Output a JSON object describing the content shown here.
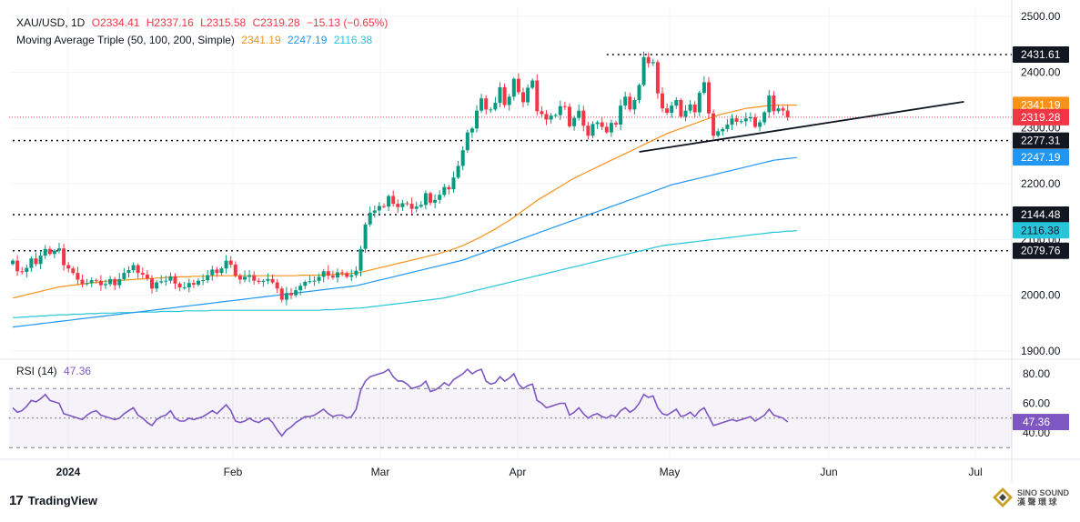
{
  "header": {
    "symbol": "XAU/USD, 1D",
    "open": "O2334.41",
    "high": "H2337.16",
    "low": "L2315.58",
    "close": "C2319.28",
    "change": "−15.13 (−0.65%)",
    "ma_label": "Moving Average Triple (50, 100, 200, Simple)",
    "ma50_value": "2341.19",
    "ma100_value": "2247.19",
    "ma200_value": "2116.38"
  },
  "rsi_header": {
    "label": "RSI (14)",
    "value": "47.36"
  },
  "branding": {
    "tradingview": "TradingView",
    "sino_line1": "SINO SOUND",
    "sino_line2": "漢 聲 環 球"
  },
  "colors": {
    "up": "#089981",
    "down": "#f23645",
    "ma50": "#f7931a",
    "ma100": "#2196f3",
    "ma200": "#26c6da",
    "rsi": "#7e57c2",
    "trendline": "#131722",
    "level": "#131722"
  },
  "chart_data": {
    "type": "candlestick",
    "title": "XAU/USD, 1D",
    "price_axis": {
      "ylim": [
        1900,
        2500
      ],
      "ticks": [
        "2500.00",
        "2400.00",
        "2300.00",
        "2200.00",
        "2100.00",
        "2000.00",
        "1900.00"
      ]
    },
    "time_axis": {
      "labels": [
        "2024",
        "Feb",
        "Mar",
        "Apr",
        "May",
        "Jun",
        "Jul"
      ]
    },
    "price_tags": [
      {
        "value": 2431.61,
        "label": "2431.61",
        "style": "level"
      },
      {
        "value": 2341.19,
        "label": "2341.19",
        "style": "ma50"
      },
      {
        "value": 2319.28,
        "label": "2319.28",
        "style": "last"
      },
      {
        "value": 2277.31,
        "label": "2277.31",
        "style": "level"
      },
      {
        "value": 2247.19,
        "label": "2247.19",
        "style": "ma100"
      },
      {
        "value": 2144.48,
        "label": "2144.48",
        "style": "level"
      },
      {
        "value": 2116.38,
        "label": "2116.38",
        "style": "ma200"
      },
      {
        "value": 2079.76,
        "label": "2079.76",
        "style": "level"
      }
    ],
    "horizontal_levels": [
      {
        "value": 2431.61,
        "from_index": 128
      },
      {
        "value": 2277.31,
        "from_index": 0
      },
      {
        "value": 2144.48,
        "from_index": 0
      },
      {
        "value": 2079.76,
        "from_index": 0
      }
    ],
    "last_price_line": 2319.28,
    "trendline": {
      "start": {
        "index": 135,
        "value": 2257
      },
      "end": {
        "index": 205,
        "value": 2347
      }
    },
    "closes": [
      2062,
      2043,
      2042,
      2049,
      2066,
      2056,
      2071,
      2083,
      2074,
      2080,
      2084,
      2054,
      2048,
      2040,
      2028,
      2020,
      2022,
      2027,
      2026,
      2018,
      2020,
      2029,
      2018,
      2029,
      2040,
      2045,
      2054,
      2040,
      2037,
      2030,
      2012,
      2023,
      2025,
      2026,
      2034,
      2021,
      2014,
      2014,
      2022,
      2019,
      2026,
      2027,
      2036,
      2046,
      2040,
      2048,
      2062,
      2055,
      2035,
      2028,
      2033,
      2036,
      2026,
      2024,
      2026,
      2029,
      2023,
      2012,
      1992,
      2004,
      2000,
      2009,
      2017,
      2024,
      2025,
      2026,
      2033,
      2043,
      2035,
      2032,
      2041,
      2040,
      2033,
      2036,
      2044,
      2083,
      2127,
      2148,
      2152,
      2160,
      2159,
      2178,
      2164,
      2158,
      2165,
      2164,
      2155,
      2159,
      2162,
      2183,
      2166,
      2171,
      2180,
      2194,
      2190,
      2211,
      2232,
      2260,
      2292,
      2299,
      2331,
      2353,
      2333,
      2333,
      2345,
      2373,
      2341,
      2356,
      2388,
      2364,
      2346,
      2372,
      2385,
      2330,
      2325,
      2315,
      2322,
      2323,
      2339,
      2338,
      2303,
      2318,
      2331,
      2304,
      2286,
      2307,
      2310,
      2302,
      2292,
      2309,
      2306,
      2340,
      2356,
      2333,
      2350,
      2377,
      2427,
      2416,
      2418,
      2362,
      2335,
      2327,
      2340,
      2350,
      2320,
      2331,
      2342,
      2328,
      2363,
      2382,
      2326,
      2286,
      2294,
      2298,
      2306,
      2317,
      2311,
      2312,
      2317,
      2319,
      2302,
      2310,
      2328,
      2358,
      2330,
      2335,
      2331,
      2319
    ],
    "ma50": [
      1995,
      1997,
      1999,
      2001,
      2003,
      2005,
      2007,
      2009,
      2011,
      2013,
      2015,
      2016,
      2017,
      2018,
      2019,
      2020,
      2021,
      2022,
      2023,
      2024,
      2025,
      2026,
      2026,
      2027,
      2027,
      2028,
      2028,
      2029,
      2029,
      2030,
      2030,
      2031,
      2031,
      2032,
      2032,
      2032,
      2033,
      2033,
      2033,
      2034,
      2034,
      2034,
      2034,
      2035,
      2035,
      2035,
      2035,
      2035,
      2035,
      2035,
      2035,
      2035,
      2035,
      2035,
      2035,
      2035,
      2035,
      2035,
      2035,
      2035,
      2035,
      2035,
      2036,
      2036,
      2036,
      2036,
      2036,
      2037,
      2037,
      2037,
      2038,
      2038,
      2038,
      2039,
      2040,
      2041,
      2043,
      2045,
      2047,
      2049,
      2051,
      2053,
      2055,
      2057,
      2059,
      2061,
      2063,
      2065,
      2067,
      2069,
      2071,
      2073,
      2075,
      2078,
      2080,
      2083,
      2086,
      2089,
      2093,
      2097,
      2101,
      2105,
      2110,
      2114,
      2119,
      2124,
      2129,
      2134,
      2140,
      2146,
      2152,
      2158,
      2164,
      2170,
      2175,
      2180,
      2185,
      2190,
      2195,
      2200,
      2205,
      2210,
      2214,
      2218,
      2222,
      2226,
      2230,
      2234,
      2238,
      2242,
      2246,
      2250,
      2254,
      2258,
      2262,
      2266,
      2270,
      2274,
      2278,
      2282,
      2286,
      2290,
      2293,
      2296,
      2299,
      2302,
      2305,
      2308,
      2311,
      2314,
      2317,
      2320,
      2323,
      2325,
      2327,
      2329,
      2331,
      2333,
      2335,
      2336,
      2337,
      2338,
      2339,
      2340,
      2340,
      2341,
      2341,
      2341,
      2341,
      2341
    ],
    "ma100": [
      1943,
      1944,
      1945,
      1946,
      1947,
      1948,
      1949,
      1950,
      1951,
      1952,
      1953,
      1954,
      1955,
      1956,
      1957,
      1958,
      1959,
      1960,
      1961,
      1962,
      1963,
      1964,
      1965,
      1966,
      1967,
      1968,
      1969,
      1970,
      1971,
      1972,
      1973,
      1974,
      1975,
      1976,
      1977,
      1978,
      1979,
      1980,
      1981,
      1982,
      1983,
      1984,
      1985,
      1986,
      1987,
      1988,
      1989,
      1990,
      1991,
      1992,
      1993,
      1994,
      1995,
      1996,
      1997,
      1998,
      1999,
      2000,
      2001,
      2002,
      2003,
      2004,
      2005,
      2006,
      2007,
      2008,
      2009,
      2010,
      2011,
      2012,
      2013,
      2014,
      2015,
      2016,
      2017,
      2019,
      2021,
      2023,
      2025,
      2027,
      2029,
      2031,
      2033,
      2035,
      2037,
      2039,
      2041,
      2043,
      2045,
      2047,
      2049,
      2051,
      2053,
      2055,
      2057,
      2059,
      2061,
      2063,
      2066,
      2069,
      2072,
      2075,
      2078,
      2081,
      2084,
      2087,
      2090,
      2093,
      2096,
      2099,
      2102,
      2105,
      2108,
      2111,
      2114,
      2117,
      2120,
      2123,
      2126,
      2129,
      2132,
      2135,
      2138,
      2141,
      2144,
      2147,
      2150,
      2153,
      2156,
      2159,
      2162,
      2165,
      2168,
      2171,
      2174,
      2177,
      2180,
      2183,
      2186,
      2189,
      2192,
      2195,
      2198,
      2200,
      2202,
      2204,
      2206,
      2208,
      2210,
      2212,
      2214,
      2216,
      2218,
      2220,
      2222,
      2224,
      2226,
      2228,
      2230,
      2232,
      2234,
      2236,
      2238,
      2240,
      2242,
      2243,
      2244,
      2245,
      2246,
      2247
    ],
    "ma200": [
      1960,
      1960,
      1961,
      1961,
      1962,
      1962,
      1963,
      1963,
      1964,
      1964,
      1965,
      1965,
      1965,
      1966,
      1966,
      1966,
      1967,
      1967,
      1967,
      1968,
      1968,
      1968,
      1968,
      1969,
      1969,
      1969,
      1969,
      1970,
      1970,
      1970,
      1970,
      1970,
      1971,
      1971,
      1971,
      1971,
      1971,
      1972,
      1972,
      1972,
      1972,
      1972,
      1972,
      1973,
      1973,
      1973,
      1973,
      1973,
      1973,
      1973,
      1973,
      1973,
      1973,
      1973,
      1973,
      1973,
      1973,
      1973,
      1973,
      1973,
      1973,
      1973,
      1973,
      1973,
      1973,
      1973,
      1973,
      1974,
      1974,
      1974,
      1975,
      1975,
      1976,
      1976,
      1977,
      1977,
      1978,
      1979,
      1980,
      1981,
      1982,
      1983,
      1984,
      1985,
      1986,
      1987,
      1988,
      1989,
      1990,
      1991,
      1992,
      1993,
      1994,
      1995,
      1997,
      1999,
      2001,
      2003,
      2005,
      2007,
      2009,
      2011,
      2013,
      2015,
      2017,
      2019,
      2021,
      2023,
      2025,
      2027,
      2029,
      2031,
      2033,
      2035,
      2037,
      2039,
      2041,
      2043,
      2045,
      2047,
      2049,
      2051,
      2053,
      2055,
      2057,
      2059,
      2061,
      2063,
      2065,
      2067,
      2069,
      2071,
      2073,
      2075,
      2077,
      2079,
      2081,
      2083,
      2085,
      2087,
      2089,
      2090,
      2091,
      2092,
      2093,
      2094,
      2095,
      2096,
      2097,
      2098,
      2099,
      2100,
      2101,
      2102,
      2103,
      2104,
      2105,
      2106,
      2107,
      2108,
      2109,
      2110,
      2111,
      2112,
      2113,
      2113,
      2114,
      2115,
      2115,
      2116
    ],
    "rsi": {
      "ylim": [
        20,
        90
      ],
      "ticks": [
        "80.00",
        "60.00",
        "40.00"
      ],
      "band": [
        30,
        70
      ],
      "midline": 50,
      "last": 47.36,
      "values": [
        57,
        54,
        55,
        58,
        62,
        61,
        63,
        66,
        62,
        61,
        60,
        53,
        52,
        51,
        50,
        49,
        52,
        54,
        55,
        52,
        51,
        50,
        49,
        50,
        53,
        55,
        57,
        52,
        50,
        47,
        45,
        49,
        51,
        52,
        55,
        50,
        48,
        48,
        50,
        49,
        50,
        51,
        53,
        55,
        53,
        56,
        59,
        55,
        48,
        47,
        48,
        50,
        48,
        47,
        49,
        50,
        47,
        42,
        38,
        42,
        44,
        47,
        49,
        51,
        51,
        52,
        54,
        56,
        53,
        51,
        52,
        52,
        50,
        51,
        56,
        69,
        75,
        78,
        79,
        80,
        81,
        83,
        78,
        75,
        75,
        73,
        70,
        71,
        72,
        75,
        68,
        69,
        71,
        74,
        72,
        76,
        78,
        80,
        83,
        80,
        82,
        83,
        75,
        73,
        74,
        78,
        75,
        77,
        80,
        73,
        70,
        72,
        73,
        62,
        60,
        57,
        58,
        59,
        60,
        60,
        52,
        54,
        57,
        53,
        50,
        52,
        53,
        51,
        50,
        52,
        51,
        55,
        57,
        54,
        56,
        60,
        66,
        64,
        65,
        57,
        53,
        52,
        54,
        56,
        51,
        52,
        54,
        51,
        55,
        57,
        51,
        45,
        46,
        47,
        48,
        49,
        48,
        49,
        50,
        51,
        48,
        50,
        52,
        56,
        52,
        51,
        50,
        47.36
      ]
    }
  }
}
